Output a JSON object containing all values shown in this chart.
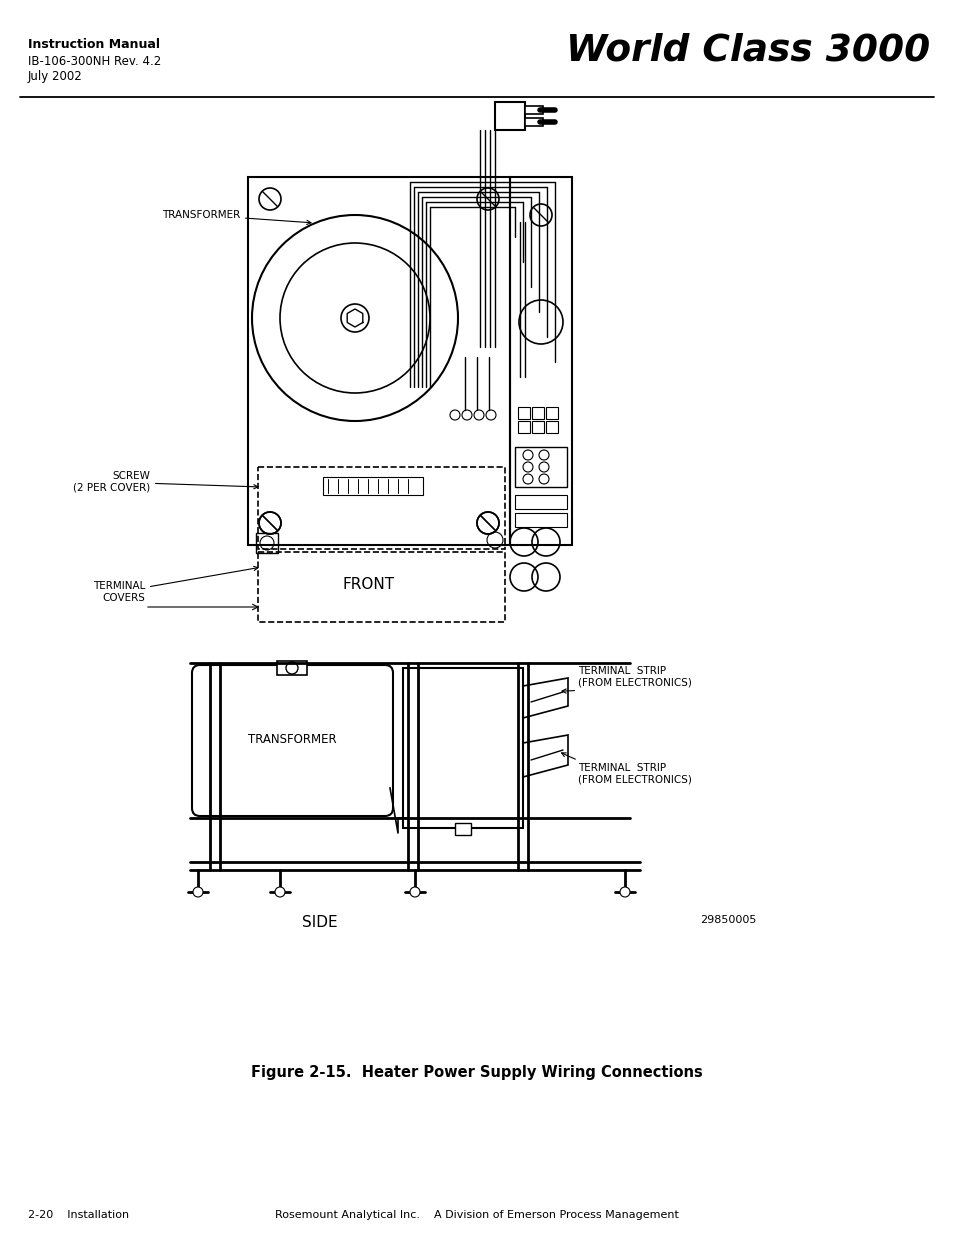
{
  "page_bg": "#ffffff",
  "title_main": "World Class 3000",
  "title_sub1": "Instruction Manual",
  "title_sub2": "IB-106-300NH Rev. 4.2",
  "title_sub3": "July 2002",
  "figure_caption": "Figure 2-15.  Heater Power Supply Wiring Connections",
  "footer_left": "2-20    Installation",
  "footer_right": "Rosemount Analytical Inc.    A Division of Emerson Process Management",
  "front_label": "FRONT",
  "side_label": "SIDE",
  "part_number": "29850005",
  "transformer_label_front": "TRANSFORMER",
  "screw_label": "SCREW\n(2 PER COVER)",
  "terminal_covers_label": "TERMINAL\nCOVERS",
  "transformer_label_side": "TRANSFORMER",
  "terminal_strip1": "TERMINAL  STRIP\n(FROM ELECTRONICS)",
  "terminal_strip2": "TERMINAL  STRIP\n(FROM ELECTRONICS)"
}
